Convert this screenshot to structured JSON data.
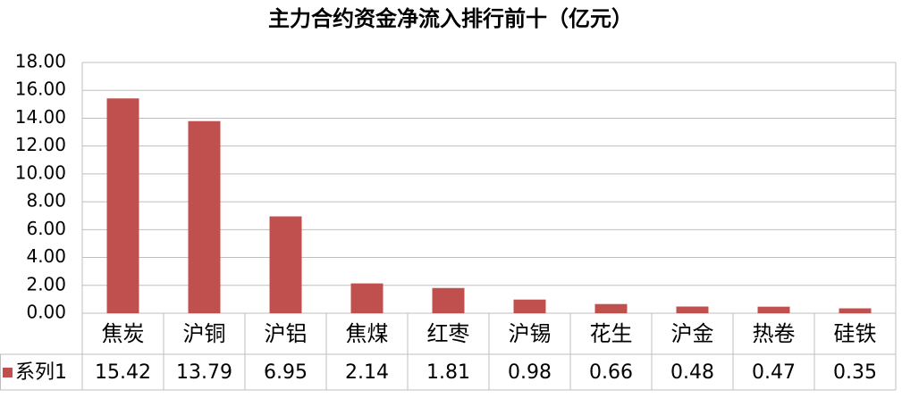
{
  "chart_data": {
    "type": "bar",
    "title": "主力合约资金净流入排行前十（亿元）",
    "categories": [
      "焦炭",
      "沪铜",
      "沪铝",
      "焦煤",
      "红枣",
      "沪锡",
      "花生",
      "沪金",
      "热卷",
      "硅铁"
    ],
    "series": [
      {
        "name": "系列1",
        "color": "#c0504d",
        "values": [
          15.42,
          13.79,
          6.95,
          2.14,
          1.81,
          0.98,
          0.66,
          0.48,
          0.47,
          0.35
        ]
      }
    ],
    "ylim": [
      0,
      18
    ],
    "yticks": [
      {
        "value": 0,
        "label": "0.00"
      },
      {
        "value": 2,
        "label": "2.00"
      },
      {
        "value": 4,
        "label": "4.00"
      },
      {
        "value": 6,
        "label": "6.00"
      },
      {
        "value": 8,
        "label": "8.00"
      },
      {
        "value": 10,
        "label": "10.00"
      },
      {
        "value": 12,
        "label": "12.00"
      },
      {
        "value": 14,
        "label": "14.00"
      },
      {
        "value": 16,
        "label": "16.00"
      },
      {
        "value": 18,
        "label": "18.00"
      }
    ],
    "grid": true
  }
}
